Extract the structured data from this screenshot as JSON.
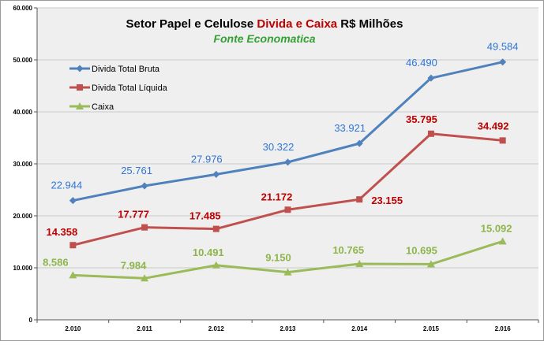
{
  "chart_data": {
    "type": "line",
    "title_parts": [
      {
        "text": "Setor Papel e Celulose ",
        "color": "#000000"
      },
      {
        "text": "Divida e Caixa",
        "color": "#c00000"
      },
      {
        "text": " R$ Milhões",
        "color": "#000000"
      }
    ],
    "subtitle": "Fonte Economatica",
    "subtitle_color": "#33a033",
    "categories": [
      "2.010",
      "2.011",
      "2.012",
      "2.013",
      "2.014",
      "2.015",
      "2.016"
    ],
    "ylim": [
      0,
      60000
    ],
    "yticks": [
      {
        "value": 0,
        "label": "0"
      },
      {
        "value": 10000,
        "label": "10.000"
      },
      {
        "value": 20000,
        "label": "20.000"
      },
      {
        "value": 30000,
        "label": "30.000"
      },
      {
        "value": 40000,
        "label": "40.000"
      },
      {
        "value": 50000,
        "label": "50.000"
      },
      {
        "value": 60000,
        "label": "60.000"
      }
    ],
    "grid": true,
    "legend_position": "top-left",
    "series": [
      {
        "name": "Divida Total Bruta",
        "color": "#4f81bd",
        "label_color": "#2e75d6",
        "marker": "diamond",
        "values": [
          22944,
          25761,
          27976,
          30322,
          33921,
          46490,
          49584
        ],
        "labels": [
          "22.944",
          "25.761",
          "27.976",
          "30.322",
          "33.921",
          "46.490",
          "49.584"
        ]
      },
      {
        "name": "Divida Total Líquida",
        "color": "#c0504d",
        "label_color": "#c00000",
        "marker": "square",
        "values": [
          14358,
          17777,
          17485,
          21172,
          23155,
          35795,
          34492
        ],
        "labels": [
          "14.358",
          "17.777",
          "17.485",
          "21.172",
          "23.155",
          "35.795",
          "34.492"
        ]
      },
      {
        "name": "Caixa",
        "color": "#9bbb59",
        "label_color": "#8db54a",
        "marker": "triangle",
        "values": [
          8586,
          7984,
          10491,
          9150,
          10765,
          10695,
          15092
        ],
        "labels": [
          "8.586",
          "7.984",
          "10.491",
          "9.150",
          "10.765",
          "10.695",
          "15.092"
        ]
      }
    ]
  }
}
